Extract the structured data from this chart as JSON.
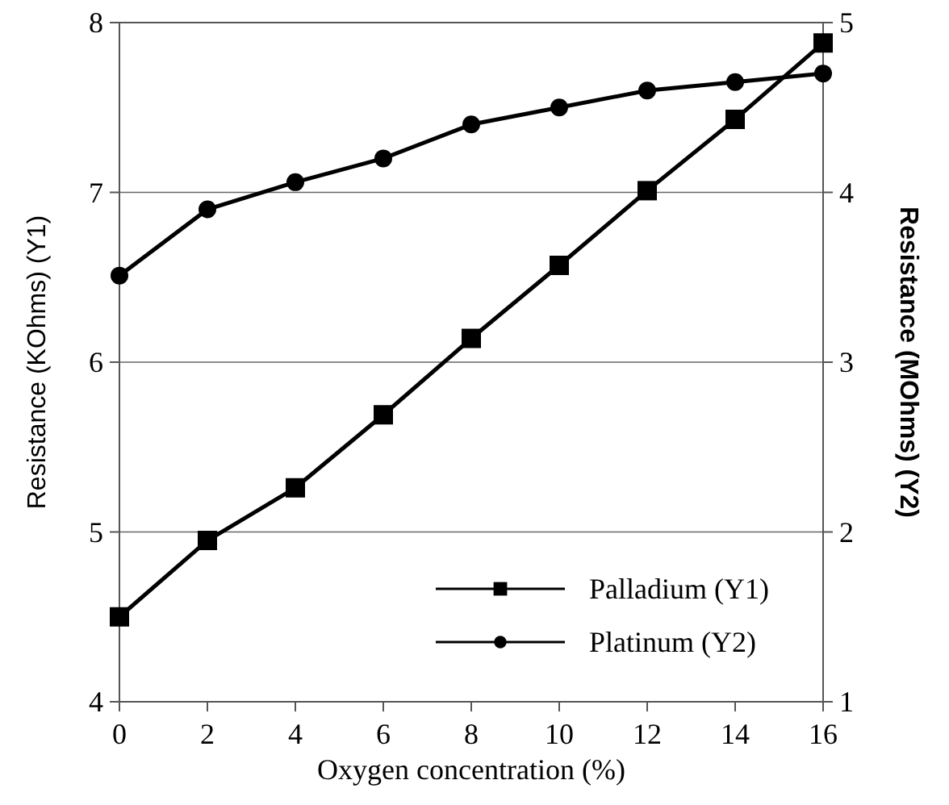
{
  "chart_data": {
    "type": "line",
    "xlabel": "Oxygen concentration (%)",
    "ylabel": "Resistance (KOhms) (Y1)",
    "y2label": "Resistance (MOhms) (Y2)",
    "x": [
      0,
      2,
      4,
      6,
      8,
      10,
      12,
      14,
      16
    ],
    "series": [
      {
        "name": "Palladium (Y1)",
        "color": "#000000",
        "marker": "square",
        "values": [
          4.5,
          4.95,
          5.26,
          5.69,
          6.14,
          6.57,
          7.01,
          7.43,
          7.88
        ]
      },
      {
        "name": "Platinum (Y2)",
        "color": "#000000",
        "marker": "circle",
        "axis": "y2",
        "values": [
          3.51,
          3.9,
          4.06,
          4.2,
          4.4,
          4.5,
          4.6,
          4.65,
          4.7
        ]
      }
    ],
    "xlim": [
      0,
      16
    ],
    "xticks": [
      0,
      2,
      4,
      6,
      8,
      10,
      12,
      14,
      16
    ],
    "ylim": [
      4,
      8
    ],
    "yticks": [
      4,
      5,
      6,
      7,
      8
    ],
    "y2lim": [
      1,
      5
    ],
    "y2ticks": [
      1,
      2,
      3,
      4,
      5
    ],
    "grid": "y",
    "legend": "bottom right",
    "line_style": "solid"
  }
}
